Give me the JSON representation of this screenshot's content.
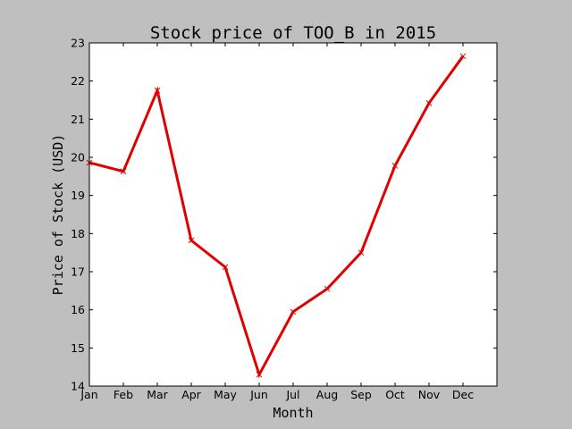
{
  "chart_data": {
    "type": "line",
    "title": "Stock price of TOO_B in 2015",
    "xlabel": "Month",
    "ylabel": "Price of Stock (USD)",
    "categories": [
      "Jan",
      "Feb",
      "Mar",
      "Apr",
      "May",
      "Jun",
      "Jul",
      "Aug",
      "Sep",
      "Oct",
      "Nov",
      "Dec"
    ],
    "series": [
      {
        "values": [
          19.86,
          19.63,
          21.75,
          17.82,
          17.12,
          14.3,
          15.95,
          16.55,
          17.5,
          19.78,
          21.42,
          22.65
        ],
        "color": "#e00000",
        "marker": "x"
      }
    ],
    "ylim": [
      14,
      23
    ],
    "yticks": [
      14,
      15,
      16,
      17,
      18,
      19,
      20,
      21,
      22,
      23
    ],
    "xlim": [
      0,
      12
    ],
    "grid": false,
    "background": "#bfbfbf",
    "plot_background": "#ffffff"
  }
}
